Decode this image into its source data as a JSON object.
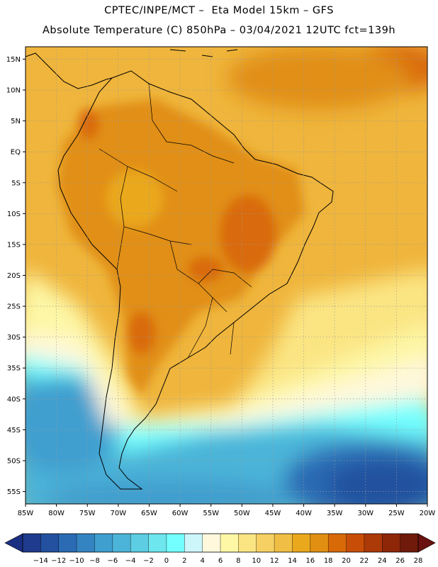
{
  "header": {
    "line1": "CPTEC/INPE/MCT –  Eta Model 15km – GFS",
    "line2": "Absolute Temperature (C) 850hPa – 03/04/2021 12UTC fct=139h"
  },
  "map": {
    "region": "South America",
    "variable": "Absolute Temperature",
    "unit": "C",
    "level": "850hPa",
    "lat_labels": [
      "15N",
      "10N",
      "5N",
      "EQ",
      "5S",
      "10S",
      "15S",
      "20S",
      "25S",
      "30S",
      "35S",
      "40S",
      "45S",
      "50S",
      "55S"
    ],
    "lon_labels": [
      "85W",
      "80W",
      "75W",
      "70W",
      "65W",
      "60W",
      "55W",
      "50W",
      "45W",
      "40W",
      "35W",
      "30W",
      "25W",
      "20W"
    ],
    "lon_range": [
      -85,
      -20
    ],
    "lat_range": [
      -57,
      17
    ],
    "gridlines": true
  },
  "colorbar": {
    "ticks": [
      "-14",
      "-12",
      "-10",
      "-8",
      "-6",
      "-4",
      "-2",
      "0",
      "2",
      "4",
      "6",
      "8",
      "10",
      "12",
      "14",
      "16",
      "18",
      "20",
      "22",
      "24",
      "26",
      "28"
    ],
    "colors": [
      "#1f3b8e",
      "#23519f",
      "#2a6bb4",
      "#3584c2",
      "#3f9fcf",
      "#4cb4d8",
      "#5ccde3",
      "#6de6ee",
      "#73ffff",
      "#cdf6fb",
      "#fff8dd",
      "#fdf7a6",
      "#fbe583",
      "#f6d062",
      "#f0be44",
      "#eaa81c",
      "#e18f12",
      "#d96a08",
      "#c84e07",
      "#ac3908",
      "#8e2608",
      "#6f1a0a"
    ],
    "under_color": "#1b2f82",
    "over_color": "#6a1210"
  }
}
